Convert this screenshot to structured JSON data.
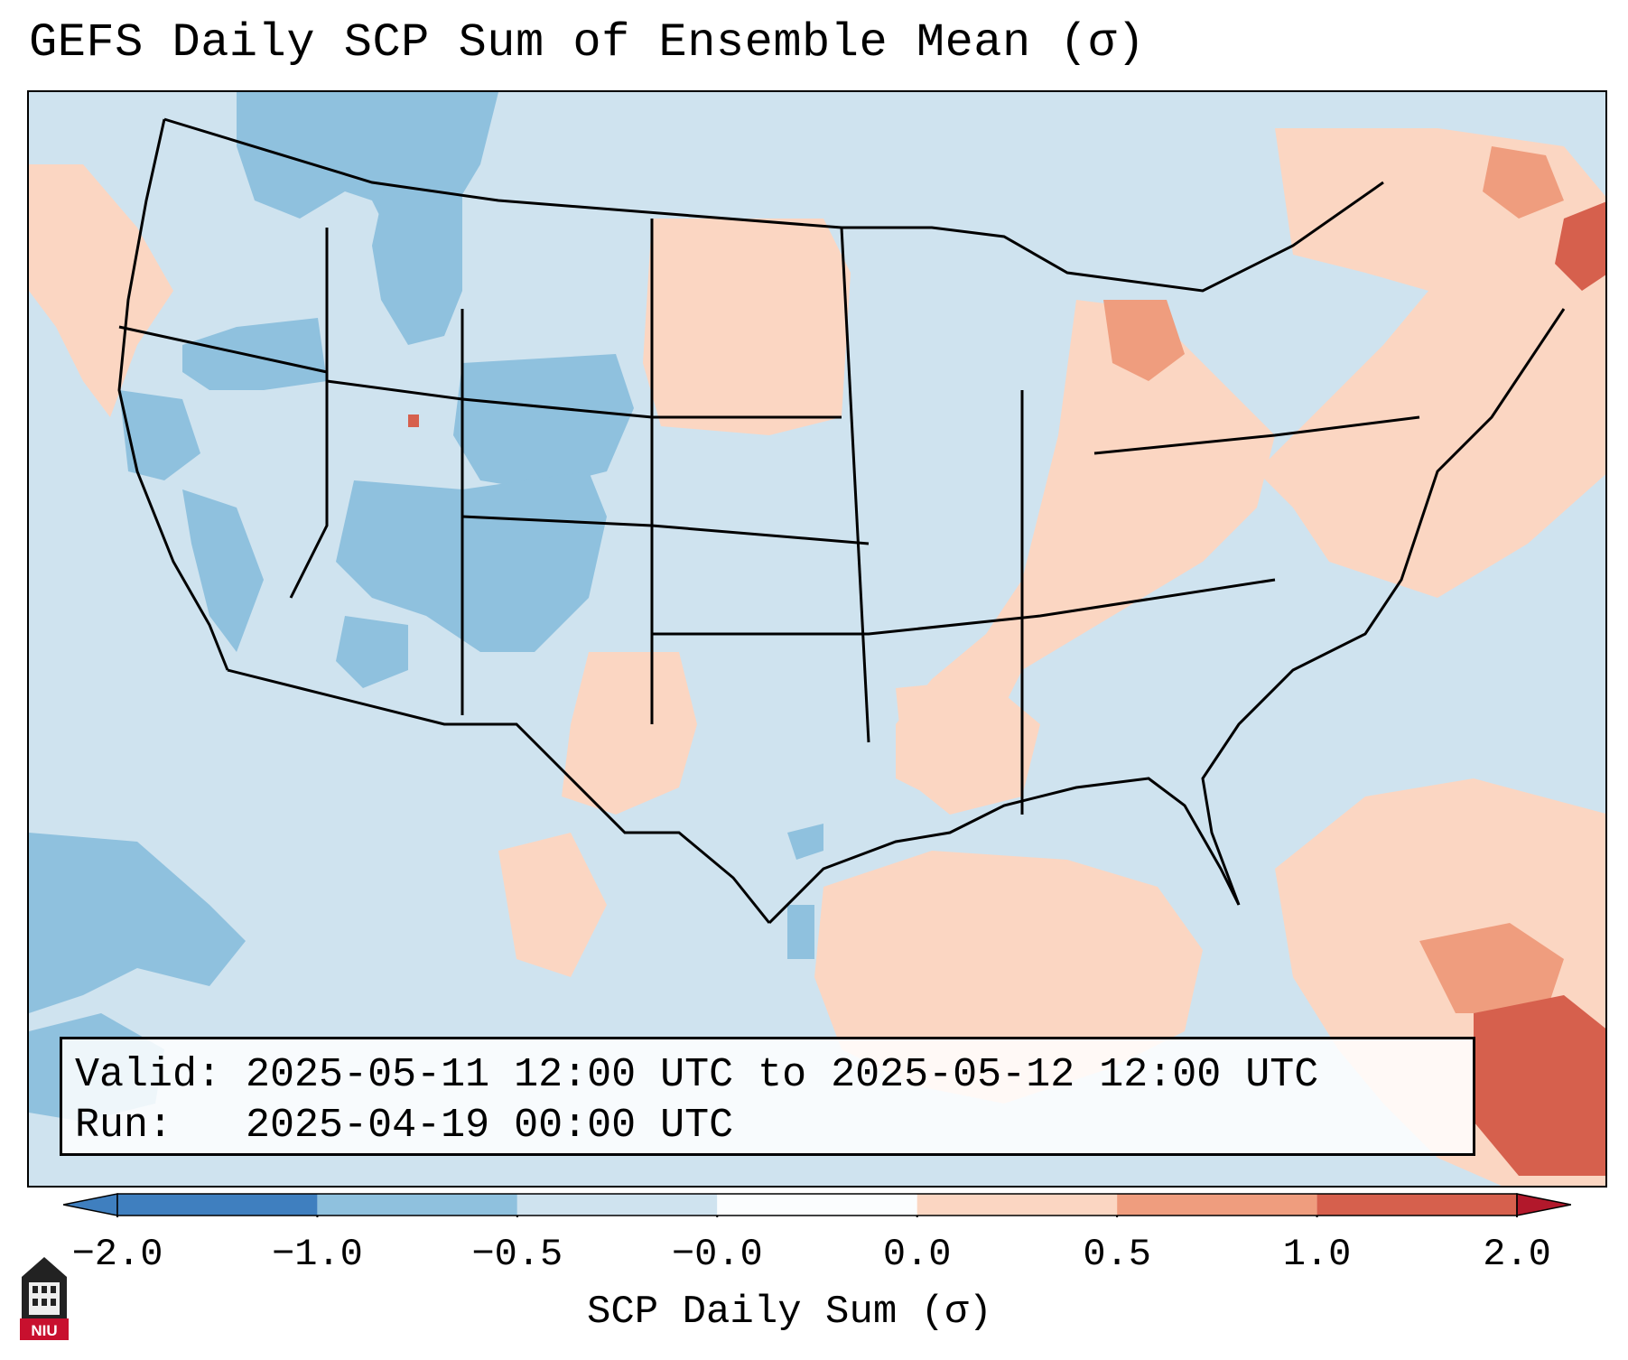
{
  "title": "GEFS Daily SCP Sum of Ensemble Mean (σ)",
  "info": {
    "valid_label": "Valid:",
    "valid_value": "2025-05-11 12:00 UTC to 2025-05-12 12:00 UTC",
    "run_label": "Run:",
    "run_value": "2025-04-19 00:00 UTC"
  },
  "colorbar": {
    "label": "SCP Daily Sum (σ)",
    "ticks": [
      "−2.0",
      "−1.0",
      "−0.5",
      "−0.0",
      "0.0",
      "0.5",
      "1.0",
      "2.0"
    ],
    "colors": [
      "#3f7fbf",
      "#8fc1de",
      "#cfe3ef",
      "#fbfdfe",
      "#fbd6c2",
      "#ef9d7e",
      "#d6604d",
      "#b2182b"
    ]
  },
  "logo": {
    "text": "NIU",
    "icon": "university-tower-icon"
  },
  "map": {
    "background_color": "#cfe3ef",
    "states_outline_color": "#000000"
  }
}
